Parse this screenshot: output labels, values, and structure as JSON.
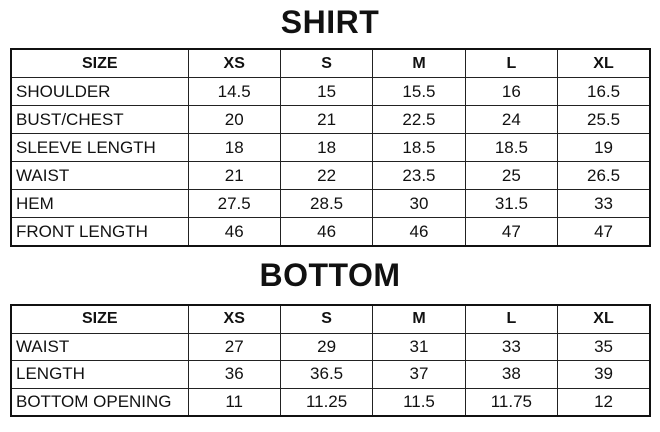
{
  "shirt": {
    "title": "SHIRT",
    "headers": [
      "SIZE",
      "XS",
      "S",
      "M",
      "L",
      "XL"
    ],
    "rows": [
      [
        "SHOULDER",
        "14.5",
        "15",
        "15.5",
        "16",
        "16.5"
      ],
      [
        "BUST/CHEST",
        "20",
        "21",
        "22.5",
        "24",
        "25.5"
      ],
      [
        "SLEEVE LENGTH",
        "18",
        "18",
        "18.5",
        "18.5",
        "19"
      ],
      [
        "WAIST",
        "21",
        "22",
        "23.5",
        "25",
        "26.5"
      ],
      [
        "HEM",
        "27.5",
        "28.5",
        "30",
        "31.5",
        "33"
      ],
      [
        "FRONT LENGTH",
        "46",
        "46",
        "46",
        "47",
        "47"
      ]
    ]
  },
  "bottom": {
    "title": "BOTTOM",
    "headers": [
      "SIZE",
      "XS",
      "S",
      "M",
      "L",
      "XL"
    ],
    "rows": [
      [
        "WAIST",
        "27",
        "29",
        "31",
        "33",
        "35"
      ],
      [
        "LENGTH",
        "36",
        "36.5",
        "37",
        "38",
        "39"
      ],
      [
        "BOTTOM OPENING",
        "11",
        "11.25",
        "11.5",
        "11.75",
        "12"
      ]
    ]
  }
}
